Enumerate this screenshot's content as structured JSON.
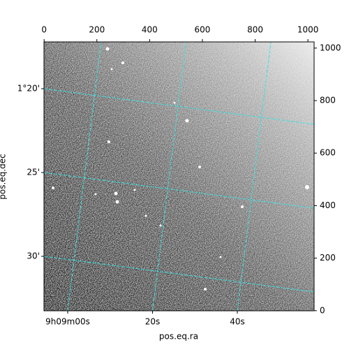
{
  "chart_data": {
    "type": "image",
    "xlabel": "pos.eq.ra",
    "ylabel": "pos.eq.dec",
    "xlim": [
      -0.5,
      1023.5
    ],
    "xticks": [
      0,
      200,
      400,
      600,
      800,
      1000
    ],
    "y2lim": [
      -0.5,
      1023.5
    ],
    "y2ticks": [
      0,
      200,
      400,
      600,
      800,
      1000
    ],
    "ra_ticks": [
      {
        "value": 32940,
        "label": "9h09m00s"
      },
      {
        "value": 32960,
        "label": "20s"
      },
      {
        "value": 32980,
        "label": "40s"
      }
    ],
    "dec_ticks": [
      {
        "value": 80,
        "label": "1°20'"
      },
      {
        "value": 85,
        "label": "25'"
      },
      {
        "value": 90,
        "label": "30'"
      }
    ],
    "grid": true,
    "grid_color": "#40e0e0"
  }
}
